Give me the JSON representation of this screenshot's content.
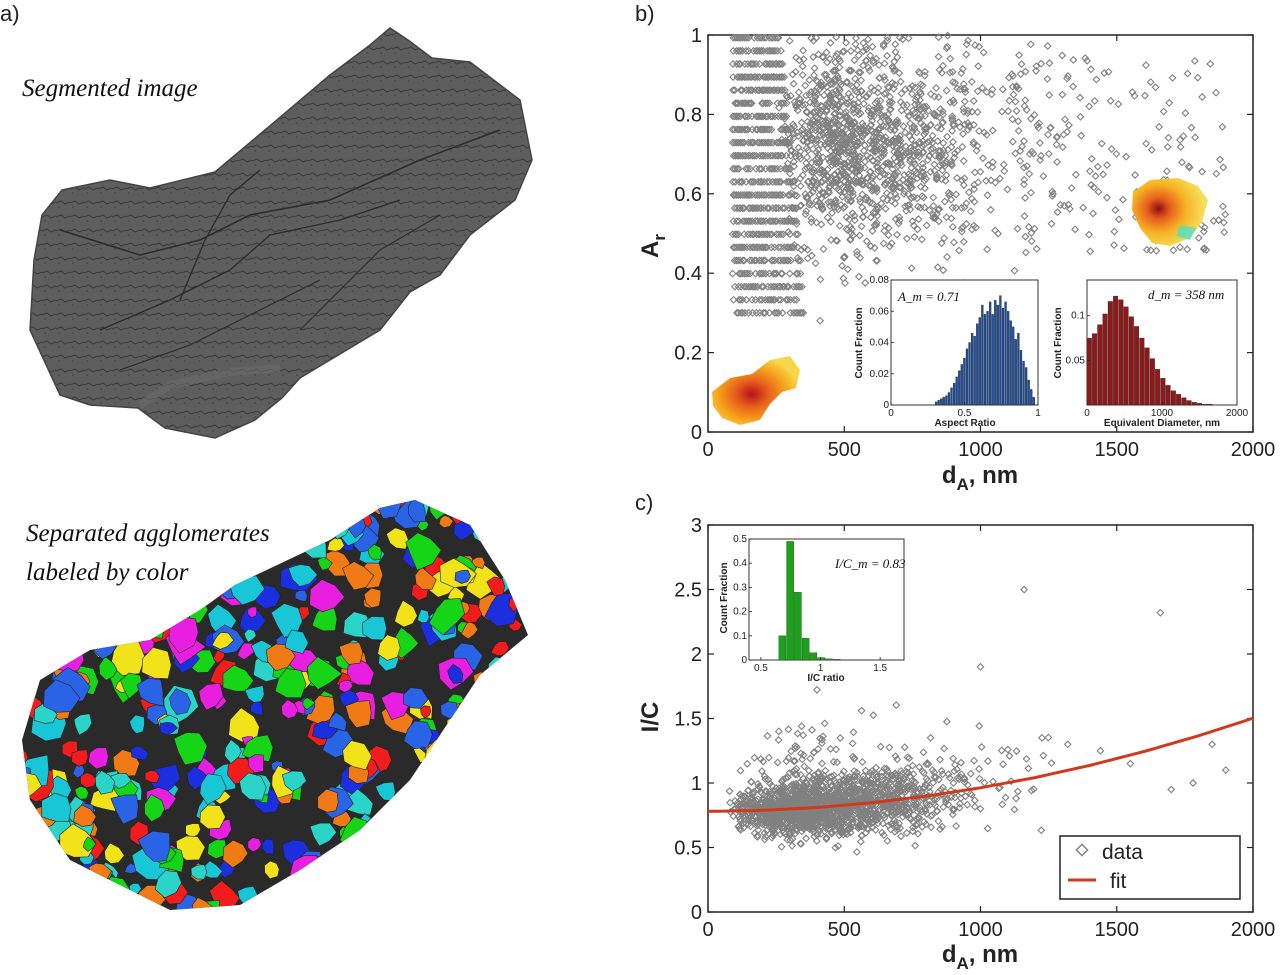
{
  "panels": {
    "a": {
      "label": "a)",
      "top_caption": "Segmented image",
      "bottom_caption_line1": "Separated agglomerates",
      "bottom_caption_line2": "labeled by color"
    },
    "b": {
      "label": "b)"
    },
    "c": {
      "label": "c)"
    }
  },
  "chart_data": [
    {
      "id": "b",
      "type": "scatter",
      "title": "",
      "xlabel_main": "d",
      "xlabel_sub": "A",
      "xlabel_rest": ", nm",
      "ylabel_main": "A",
      "ylabel_sub": "r",
      "xlim": [
        0,
        2000
      ],
      "ylim": [
        0,
        1
      ],
      "xticks": [
        0,
        500,
        1000,
        1500,
        2000
      ],
      "yticks": [
        0,
        0.2,
        0.4,
        0.6,
        0.8,
        1
      ],
      "marker_color": "#808080",
      "series": [
        {
          "name": "data",
          "description": "agglomerate aspect ratio vs equivalent diameter, dense cloud 100-1200 nm, A_r 0.3-1"
        }
      ],
      "insets": [
        {
          "id": "b_hist_ar",
          "type": "bar",
          "xlabel": "Aspect Ratio",
          "ylabel": "Count Fraction",
          "annotation": "A_m = 0.71",
          "xlim": [
            0,
            1
          ],
          "ylim": [
            0,
            0.08
          ],
          "xticks": [
            0,
            0.5,
            1
          ],
          "yticks": [
            0,
            0.02,
            0.04,
            0.06,
            0.08
          ],
          "color": "#1f4e9a",
          "bin_start": 0.3,
          "bin_width": 0.0175,
          "values": [
            0.002,
            0.003,
            0.004,
            0.005,
            0.006,
            0.008,
            0.011,
            0.014,
            0.018,
            0.022,
            0.026,
            0.03,
            0.036,
            0.04,
            0.046,
            0.044,
            0.052,
            0.056,
            0.064,
            0.058,
            0.06,
            0.066,
            0.058,
            0.067,
            0.064,
            0.07,
            0.062,
            0.066,
            0.06,
            0.054,
            0.05,
            0.042,
            0.046,
            0.035,
            0.028,
            0.024,
            0.016,
            0.01,
            0.005
          ]
        },
        {
          "id": "b_hist_d",
          "type": "bar",
          "xlabel": "Equivalent Diameter, nm",
          "ylabel": "Count Fraction",
          "annotation": "d_m = 358 nm",
          "xlim": [
            0,
            2000
          ],
          "ylim": [
            0,
            0.14
          ],
          "xticks": [
            0,
            1000,
            2000
          ],
          "yticks": [
            0.05,
            0.1
          ],
          "color": "#8b1a1a",
          "bin_start": 0,
          "bin_width": 70,
          "values": [
            0.075,
            0.08,
            0.09,
            0.102,
            0.116,
            0.122,
            0.118,
            0.11,
            0.099,
            0.088,
            0.075,
            0.064,
            0.052,
            0.04,
            0.03,
            0.022,
            0.016,
            0.012,
            0.008,
            0.005,
            0.003,
            0.002,
            0.001,
            0.001
          ]
        }
      ]
    },
    {
      "id": "c",
      "type": "scatter",
      "xlabel_main": "d",
      "xlabel_sub": "A",
      "xlabel_rest": ", nm",
      "ylabel": "I/C",
      "xlim": [
        0,
        2000
      ],
      "ylim": [
        0,
        3
      ],
      "xticks": [
        0,
        500,
        1000,
        1500,
        2000
      ],
      "yticks": [
        0,
        0.5,
        1,
        1.5,
        2,
        2.5,
        3
      ],
      "legend": {
        "location": "bottom-right",
        "entries": [
          "data",
          "fit"
        ]
      },
      "series": [
        {
          "name": "data",
          "color": "#808080",
          "description": "I/C ratio vs d_A, cluster ~0.8 at small d_A, spread increasing"
        },
        {
          "name": "fit",
          "color": "#d03a1c",
          "x": [
            0,
            200,
            400,
            600,
            800,
            1000,
            1200,
            1400,
            1600,
            1800,
            2000
          ],
          "values": [
            0.78,
            0.788,
            0.81,
            0.847,
            0.898,
            0.963,
            1.042,
            1.136,
            1.244,
            1.366,
            1.502
          ]
        }
      ],
      "inset": {
        "type": "bar",
        "xlabel": "I/C ratio",
        "ylabel": "Count Fraction",
        "annotation": "I/C_m = 0.83",
        "xlim": [
          0.4,
          1.7
        ],
        "ylim": [
          0,
          0.5
        ],
        "xticks": [
          0.5,
          1,
          1.5
        ],
        "yticks": [
          0,
          0.1,
          0.2,
          0.3,
          0.4,
          0.5
        ],
        "color": "#1aa31a",
        "bin_start": 0.65,
        "bin_width": 0.065,
        "values": [
          0.1,
          0.49,
          0.28,
          0.09,
          0.03,
          0.01,
          0.005,
          0.003
        ]
      }
    }
  ]
}
